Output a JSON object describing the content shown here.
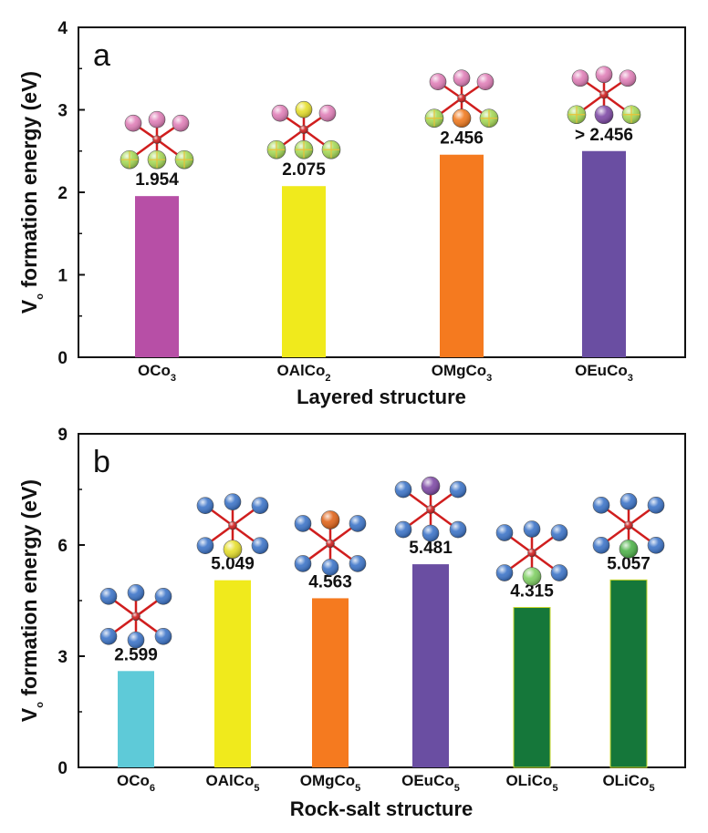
{
  "chart_data": [
    {
      "type": "bar",
      "panel_label": "a",
      "categories": [
        {
          "base": "OCo",
          "sub": "3"
        },
        {
          "base": "OAlCo",
          "sub": "2"
        },
        {
          "base": "OMgCo",
          "sub": "3"
        },
        {
          "base": "OEuCo",
          "sub": "3"
        }
      ],
      "values": [
        1.954,
        2.075,
        2.456,
        2.5
      ],
      "data_labels": [
        "1.954",
        "2.075",
        "2.456",
        "> 2.456"
      ],
      "colors": [
        "#b74fa6",
        "#f0ea1c",
        "#f57a1f",
        "#6a4ea2"
      ],
      "xlabel": "Layered structure",
      "ylabel": {
        "base": "V",
        "sub": "o",
        "rest": " formation energy (eV)"
      },
      "ylim": [
        0,
        4
      ],
      "yticks": [
        0,
        1,
        2,
        3,
        4
      ],
      "grid": false,
      "cluster_icons": [
        {
          "top": [
            "#e07fb8",
            "#e07fb8",
            "#e07fb8"
          ],
          "bottom": [
            "#a6d957",
            "#a6d957",
            "#a6d957"
          ]
        },
        {
          "top": [
            "#e07fb8",
            "#e6df2c",
            "#e07fb8"
          ],
          "bottom": [
            "#a6d957",
            "#a6d957",
            "#a6d957"
          ]
        },
        {
          "top": [
            "#e07fb8",
            "#e07fb8",
            "#e07fb8"
          ],
          "bottom": [
            "#a6d957",
            "#f07a1f",
            "#a6d957"
          ]
        },
        {
          "top": [
            "#e07fb8",
            "#e07fb8",
            "#e07fb8"
          ],
          "bottom": [
            "#a6d957",
            "#7f4aa6",
            "#a6d957"
          ]
        }
      ]
    },
    {
      "type": "bar",
      "panel_label": "b",
      "categories": [
        {
          "base": "OCo",
          "sub": "6"
        },
        {
          "base": "OAlCo",
          "sub": "5"
        },
        {
          "base": "OMgCo",
          "sub": "5"
        },
        {
          "base": "OEuCo",
          "sub": "5"
        },
        {
          "base": "OLiCo",
          "sub": "5"
        },
        {
          "base": "OLiCo",
          "sub": "5"
        }
      ],
      "values": [
        2.599,
        5.049,
        4.563,
        5.481,
        4.315,
        5.057
      ],
      "data_labels": [
        "2.599",
        "5.049",
        "4.563",
        "5.481",
        "4.315",
        "5.057"
      ],
      "colors": [
        "#5ecad8",
        "#f0ea1c",
        "#f57a1f",
        "#6a4ea2",
        "#15773a",
        "#15773a"
      ],
      "xlabel": "Rock-salt structure",
      "ylabel": {
        "base": "V",
        "sub": "o",
        "rest": " formation energy (eV)"
      },
      "ylim": [
        0,
        9
      ],
      "yticks": [
        0,
        3,
        6,
        9
      ],
      "grid": false,
      "cluster_icons": [
        {
          "special": null
        },
        {
          "special": "#e6df2c",
          "pos": "bottom"
        },
        {
          "special": "#e0641a",
          "pos": "top"
        },
        {
          "special": "#7f4aa6",
          "pos": "top"
        },
        {
          "special": "#7fcf63",
          "pos": "bottom"
        },
        {
          "special": "#4fb24a",
          "pos": "bottom"
        }
      ]
    }
  ]
}
